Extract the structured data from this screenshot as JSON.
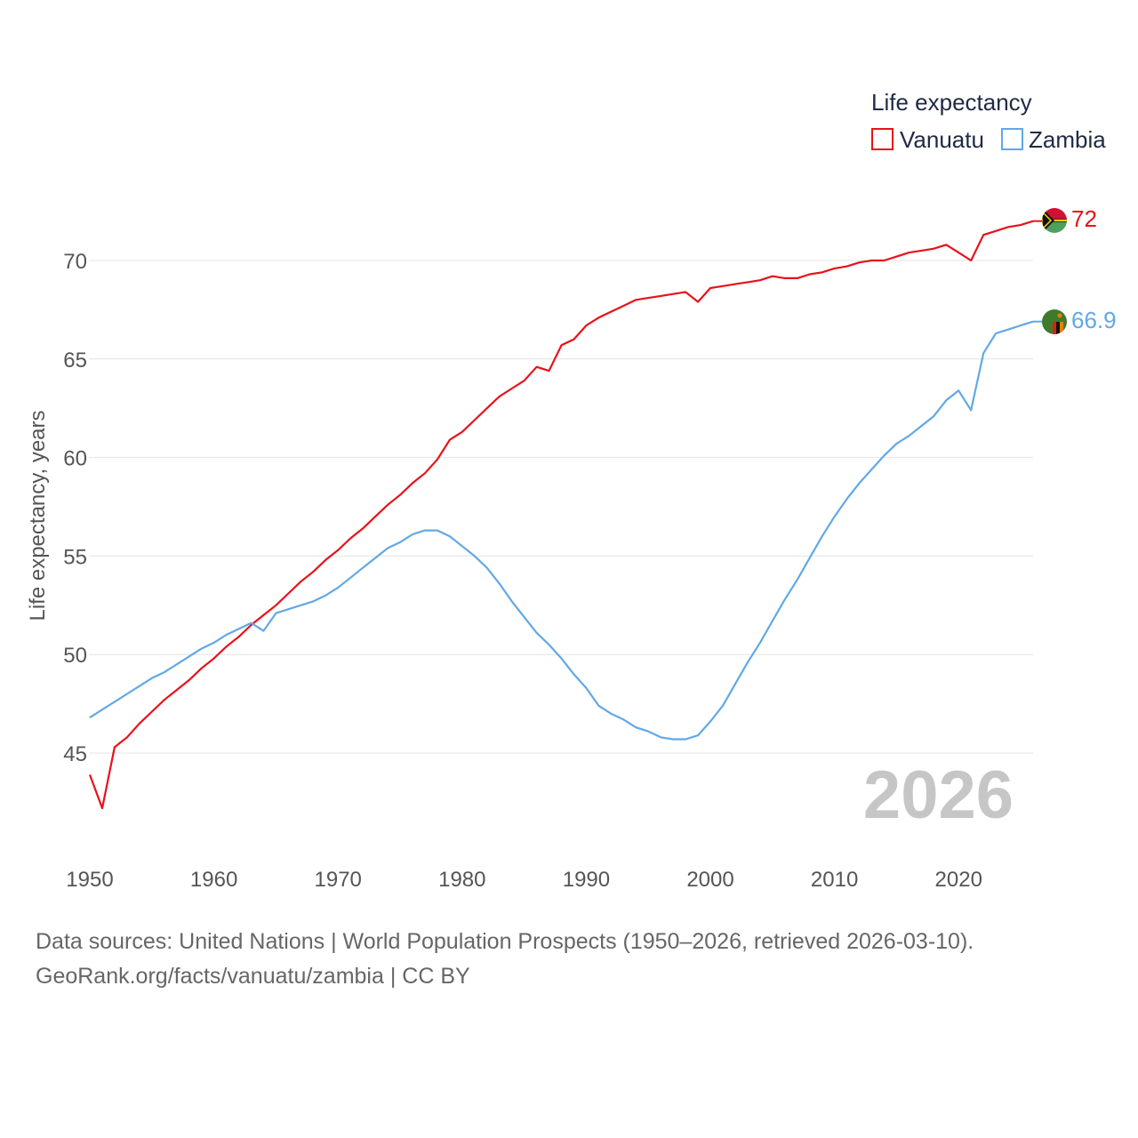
{
  "chart_data": {
    "type": "line",
    "title": "",
    "xlabel": "",
    "ylabel": "Life expectancy, years",
    "xlim": [
      1950,
      2026
    ],
    "ylim": [
      41,
      73
    ],
    "xticks": [
      1950,
      1960,
      1970,
      1980,
      1990,
      2000,
      2010,
      2020
    ],
    "yticks": [
      45,
      50,
      55,
      60,
      65,
      70
    ],
    "xtick_labels": [
      "1950",
      "1960",
      "1970",
      "1980",
      "1990",
      "2000",
      "2010",
      "2020"
    ],
    "ytick_labels": [
      "45",
      "50",
      "55",
      "60",
      "65",
      "70"
    ],
    "legend_title": "Life expectancy",
    "legend_position": "top-right",
    "current_year": "2026",
    "series": [
      {
        "name": "Vanuatu",
        "color": "#e8111a",
        "end_label": "72",
        "flag_icon": "vanuatu-flag-icon",
        "points": [
          [
            1950,
            43.9
          ],
          [
            1951,
            42.2
          ],
          [
            1952,
            45.3
          ],
          [
            1953,
            45.8
          ],
          [
            1954,
            46.5
          ],
          [
            1955,
            47.1
          ],
          [
            1956,
            47.7
          ],
          [
            1957,
            48.2
          ],
          [
            1958,
            48.7
          ],
          [
            1959,
            49.3
          ],
          [
            1960,
            49.8
          ],
          [
            1961,
            50.4
          ],
          [
            1962,
            50.9
          ],
          [
            1963,
            51.5
          ],
          [
            1964,
            52.0
          ],
          [
            1965,
            52.5
          ],
          [
            1966,
            53.1
          ],
          [
            1967,
            53.7
          ],
          [
            1968,
            54.2
          ],
          [
            1969,
            54.8
          ],
          [
            1970,
            55.3
          ],
          [
            1971,
            55.9
          ],
          [
            1972,
            56.4
          ],
          [
            1973,
            57.0
          ],
          [
            1974,
            57.6
          ],
          [
            1975,
            58.1
          ],
          [
            1976,
            58.7
          ],
          [
            1977,
            59.2
          ],
          [
            1978,
            59.9
          ],
          [
            1979,
            60.9
          ],
          [
            1980,
            61.3
          ],
          [
            1981,
            61.9
          ],
          [
            1982,
            62.5
          ],
          [
            1983,
            63.1
          ],
          [
            1984,
            63.5
          ],
          [
            1985,
            63.9
          ],
          [
            1986,
            64.6
          ],
          [
            1987,
            64.4
          ],
          [
            1988,
            65.7
          ],
          [
            1989,
            66.0
          ],
          [
            1990,
            66.7
          ],
          [
            1991,
            67.1
          ],
          [
            1992,
            67.4
          ],
          [
            1993,
            67.7
          ],
          [
            1994,
            68.0
          ],
          [
            1995,
            68.1
          ],
          [
            1996,
            68.2
          ],
          [
            1997,
            68.3
          ],
          [
            1998,
            68.4
          ],
          [
            1999,
            67.9
          ],
          [
            2000,
            68.6
          ],
          [
            2001,
            68.7
          ],
          [
            2002,
            68.8
          ],
          [
            2003,
            68.9
          ],
          [
            2004,
            69.0
          ],
          [
            2005,
            69.2
          ],
          [
            2006,
            69.1
          ],
          [
            2007,
            69.1
          ],
          [
            2008,
            69.3
          ],
          [
            2009,
            69.4
          ],
          [
            2010,
            69.6
          ],
          [
            2011,
            69.7
          ],
          [
            2012,
            69.9
          ],
          [
            2013,
            70.0
          ],
          [
            2014,
            70.0
          ],
          [
            2015,
            70.2
          ],
          [
            2016,
            70.4
          ],
          [
            2017,
            70.5
          ],
          [
            2018,
            70.6
          ],
          [
            2019,
            70.8
          ],
          [
            2020,
            70.4
          ],
          [
            2021,
            70.0
          ],
          [
            2022,
            71.3
          ],
          [
            2023,
            71.5
          ],
          [
            2024,
            71.7
          ],
          [
            2025,
            71.8
          ],
          [
            2026,
            72.0
          ]
        ]
      },
      {
        "name": "Zambia",
        "color": "#62a8e5",
        "end_label": "66.9",
        "flag_icon": "zambia-flag-icon",
        "points": [
          [
            1950,
            46.8
          ],
          [
            1951,
            47.2
          ],
          [
            1952,
            47.6
          ],
          [
            1953,
            48.0
          ],
          [
            1954,
            48.4
          ],
          [
            1955,
            48.8
          ],
          [
            1956,
            49.1
          ],
          [
            1957,
            49.5
          ],
          [
            1958,
            49.9
          ],
          [
            1959,
            50.3
          ],
          [
            1960,
            50.6
          ],
          [
            1961,
            51.0
          ],
          [
            1962,
            51.3
          ],
          [
            1963,
            51.6
          ],
          [
            1964,
            51.2
          ],
          [
            1965,
            52.1
          ],
          [
            1966,
            52.3
          ],
          [
            1967,
            52.5
          ],
          [
            1968,
            52.7
          ],
          [
            1969,
            53.0
          ],
          [
            1970,
            53.4
          ],
          [
            1971,
            53.9
          ],
          [
            1972,
            54.4
          ],
          [
            1973,
            54.9
          ],
          [
            1974,
            55.4
          ],
          [
            1975,
            55.7
          ],
          [
            1976,
            56.1
          ],
          [
            1977,
            56.3
          ],
          [
            1978,
            56.3
          ],
          [
            1979,
            56.0
          ],
          [
            1980,
            55.5
          ],
          [
            1981,
            55.0
          ],
          [
            1982,
            54.4
          ],
          [
            1983,
            53.6
          ],
          [
            1984,
            52.7
          ],
          [
            1985,
            51.9
          ],
          [
            1986,
            51.1
          ],
          [
            1987,
            50.5
          ],
          [
            1988,
            49.8
          ],
          [
            1989,
            49.0
          ],
          [
            1990,
            48.3
          ],
          [
            1991,
            47.4
          ],
          [
            1992,
            47.0
          ],
          [
            1993,
            46.7
          ],
          [
            1994,
            46.3
          ],
          [
            1995,
            46.1
          ],
          [
            1996,
            45.8
          ],
          [
            1997,
            45.7
          ],
          [
            1998,
            45.7
          ],
          [
            1999,
            45.9
          ],
          [
            2000,
            46.6
          ],
          [
            2001,
            47.4
          ],
          [
            2002,
            48.5
          ],
          [
            2003,
            49.6
          ],
          [
            2004,
            50.6
          ],
          [
            2005,
            51.7
          ],
          [
            2006,
            52.8
          ],
          [
            2007,
            53.8
          ],
          [
            2008,
            54.9
          ],
          [
            2009,
            56.0
          ],
          [
            2010,
            57.0
          ],
          [
            2011,
            57.9
          ],
          [
            2012,
            58.7
          ],
          [
            2013,
            59.4
          ],
          [
            2014,
            60.1
          ],
          [
            2015,
            60.7
          ],
          [
            2016,
            61.1
          ],
          [
            2017,
            61.6
          ],
          [
            2018,
            62.1
          ],
          [
            2019,
            62.9
          ],
          [
            2020,
            63.4
          ],
          [
            2021,
            62.4
          ],
          [
            2022,
            65.3
          ],
          [
            2023,
            66.3
          ],
          [
            2024,
            66.5
          ],
          [
            2025,
            66.7
          ],
          [
            2026,
            66.9
          ]
        ]
      }
    ]
  },
  "source": {
    "line1": "Data sources: United Nations | World Population Prospects (1950–2026, retrieved 2026-03-10).",
    "line2": "GeoRank.org/facts/vanuatu/zambia | CC BY"
  }
}
